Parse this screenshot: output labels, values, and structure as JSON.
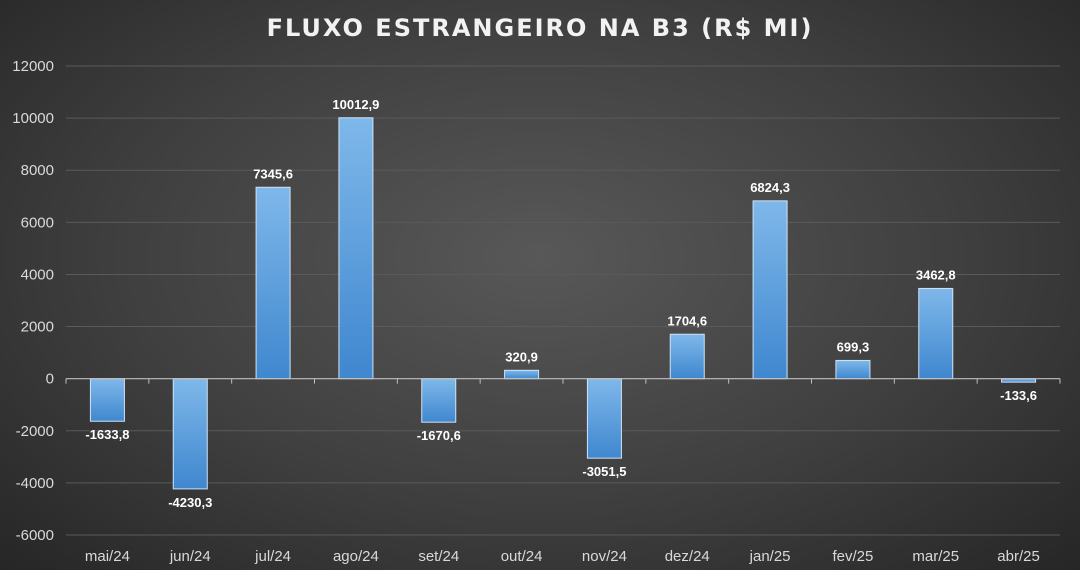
{
  "chart_data": {
    "type": "bar",
    "title": "FLUXO ESTRANGEIRO NA B3 (R$ MI)",
    "xlabel": "",
    "ylabel": "",
    "categories": [
      "mai/24",
      "jun/24",
      "jul/24",
      "ago/24",
      "set/24",
      "out/24",
      "nov/24",
      "dez/24",
      "jan/25",
      "fev/25",
      "mar/25",
      "abr/25"
    ],
    "values": [
      -1633.8,
      -4230.3,
      7345.6,
      10012.9,
      -1670.6,
      320.9,
      -3051.5,
      1704.6,
      6824.3,
      699.3,
      3462.8,
      -133.6
    ],
    "data_labels": [
      "-1633,8",
      "-4230,3",
      "7345,6",
      "10012,9",
      "-1670,6",
      "320,9",
      "-3051,5",
      "1704,6",
      "6824,3",
      "699,3",
      "3462,8",
      "-133,6"
    ],
    "ylim": [
      -6000,
      12000
    ],
    "yticks": [
      12000,
      10000,
      8000,
      6000,
      4000,
      2000,
      0,
      -2000,
      -4000,
      -6000
    ],
    "grid": true,
    "legend": "none",
    "colors": {
      "bar_top": "#7fb8ea",
      "bar_bottom": "#3f87cf",
      "bar_border": "#cfe3f5",
      "grid": "#5a5a5a",
      "axis": "#bfbfbf"
    }
  }
}
